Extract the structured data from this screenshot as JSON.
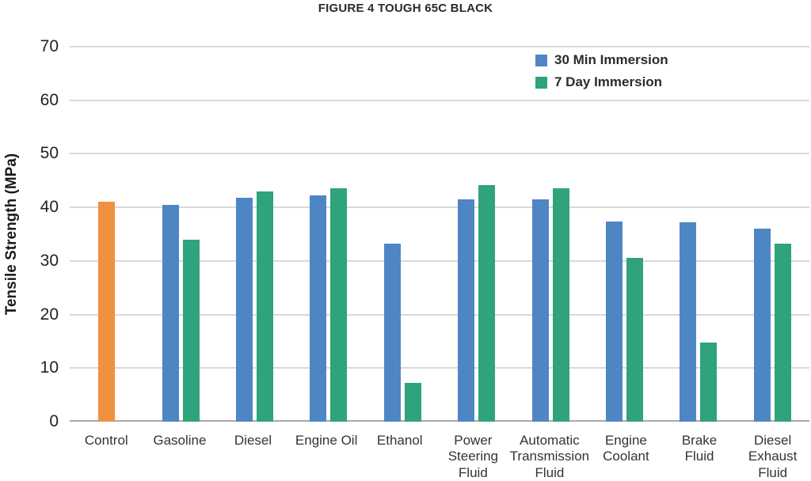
{
  "chart_data": {
    "type": "bar",
    "title": "FIGURE 4 TOUGH 65C BLACK",
    "xlabel": "",
    "ylabel": "Tensile Strength (MPa)",
    "ylim": [
      0,
      70
    ],
    "yticks": [
      0,
      10,
      20,
      30,
      40,
      50,
      60,
      70
    ],
    "grid": true,
    "legend_position": "top-right",
    "categories": [
      "Control",
      "Gasoline",
      "Diesel",
      "Engine Oil",
      "Ethanol",
      "Power\nSteering\nFluid",
      "Automatic\nTransmission\nFluid",
      "Engine\nCoolant",
      "Brake\nFluid",
      "Diesel\nExhaust\nFluid"
    ],
    "series": [
      {
        "name": "Control",
        "color": "#F09140",
        "in_legend": false,
        "values": [
          41.0,
          null,
          null,
          null,
          null,
          null,
          null,
          null,
          null,
          null
        ]
      },
      {
        "name": "30 Min Immersion",
        "color": "#4E86C4",
        "in_legend": true,
        "values": [
          null,
          40.5,
          41.8,
          42.3,
          33.2,
          41.5,
          41.5,
          37.4,
          37.2,
          36.1
        ]
      },
      {
        "name": "7 Day Immersion",
        "color": "#2FA37B",
        "in_legend": true,
        "values": [
          null,
          34.0,
          43.0,
          43.5,
          7.3,
          44.2,
          43.5,
          30.5,
          14.7,
          33.3
        ]
      }
    ]
  },
  "legend": {
    "items": [
      {
        "label": "30 Min Immersion",
        "color": "#4E86C4"
      },
      {
        "label": "7 Day Immersion",
        "color": "#2FA37B"
      }
    ]
  },
  "colors": {
    "control_bar": "#F09140",
    "series_30min": "#4E86C4",
    "series_7day": "#2FA37B",
    "gridline": "#d9d9d9",
    "axis_line": "#a9a9a9",
    "text": "#2b2b2b"
  }
}
